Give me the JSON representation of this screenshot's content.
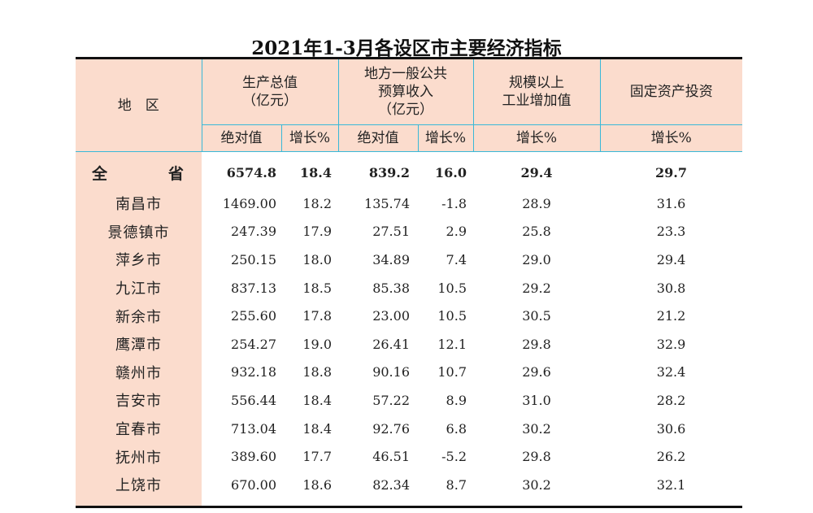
{
  "title": "2021年1-3月各设区市主要经济指标",
  "headers": {
    "region": "地　区",
    "gdp": "生产总值（亿元）",
    "gdp_line1": "生产总值",
    "gdp_line2": "（亿元）",
    "budget_line1": "地方一般公共",
    "budget_line2": "预算收入",
    "budget_line3": "（亿元）",
    "industry_line1": "规模以上",
    "industry_line2": "工业增加值",
    "investment": "固定资产投资",
    "abs": "绝对值",
    "growth": "增长%"
  },
  "rows": [
    {
      "name": "全　省",
      "gdp": "6574.8",
      "gdp_g": "18.4",
      "bud": "839.2",
      "bud_g": "16.0",
      "ind_g": "29.4",
      "inv_g": "29.7"
    },
    {
      "name": "南昌市",
      "gdp": "1469.00",
      "gdp_g": "18.2",
      "bud": "135.74",
      "bud_g": "-1.8",
      "ind_g": "28.9",
      "inv_g": "31.6"
    },
    {
      "name": "景德镇市",
      "gdp": "247.39",
      "gdp_g": "17.9",
      "bud": "27.51",
      "bud_g": "2.9",
      "ind_g": "25.8",
      "inv_g": "23.3"
    },
    {
      "name": "萍乡市",
      "gdp": "250.15",
      "gdp_g": "18.0",
      "bud": "34.89",
      "bud_g": "7.4",
      "ind_g": "29.0",
      "inv_g": "29.4"
    },
    {
      "name": "九江市",
      "gdp": "837.13",
      "gdp_g": "18.5",
      "bud": "85.38",
      "bud_g": "10.5",
      "ind_g": "29.2",
      "inv_g": "30.8"
    },
    {
      "name": "新余市",
      "gdp": "255.60",
      "gdp_g": "17.8",
      "bud": "23.00",
      "bud_g": "10.5",
      "ind_g": "30.5",
      "inv_g": "21.2"
    },
    {
      "name": "鹰潭市",
      "gdp": "254.27",
      "gdp_g": "19.0",
      "bud": "26.41",
      "bud_g": "12.1",
      "ind_g": "29.8",
      "inv_g": "32.9"
    },
    {
      "name": "赣州市",
      "gdp": "932.18",
      "gdp_g": "18.8",
      "bud": "90.16",
      "bud_g": "10.7",
      "ind_g": "29.6",
      "inv_g": "32.4"
    },
    {
      "name": "吉安市",
      "gdp": "556.44",
      "gdp_g": "18.4",
      "bud": "57.22",
      "bud_g": "8.9",
      "ind_g": "31.0",
      "inv_g": "28.2"
    },
    {
      "name": "宜春市",
      "gdp": "713.04",
      "gdp_g": "18.4",
      "bud": "92.76",
      "bud_g": "6.8",
      "ind_g": "30.2",
      "inv_g": "30.6"
    },
    {
      "name": "抚州市",
      "gdp": "389.60",
      "gdp_g": "17.7",
      "bud": "46.51",
      "bud_g": "-5.2",
      "ind_g": "29.8",
      "inv_g": "26.2"
    },
    {
      "name": "上饶市",
      "gdp": "670.00",
      "gdp_g": "18.6",
      "bud": "82.34",
      "bud_g": "8.7",
      "ind_g": "30.2",
      "inv_g": "32.1"
    }
  ],
  "colors": {
    "header_bg": "#fbdccd",
    "grid_line": "#38b8d8",
    "rule": "#111111"
  }
}
